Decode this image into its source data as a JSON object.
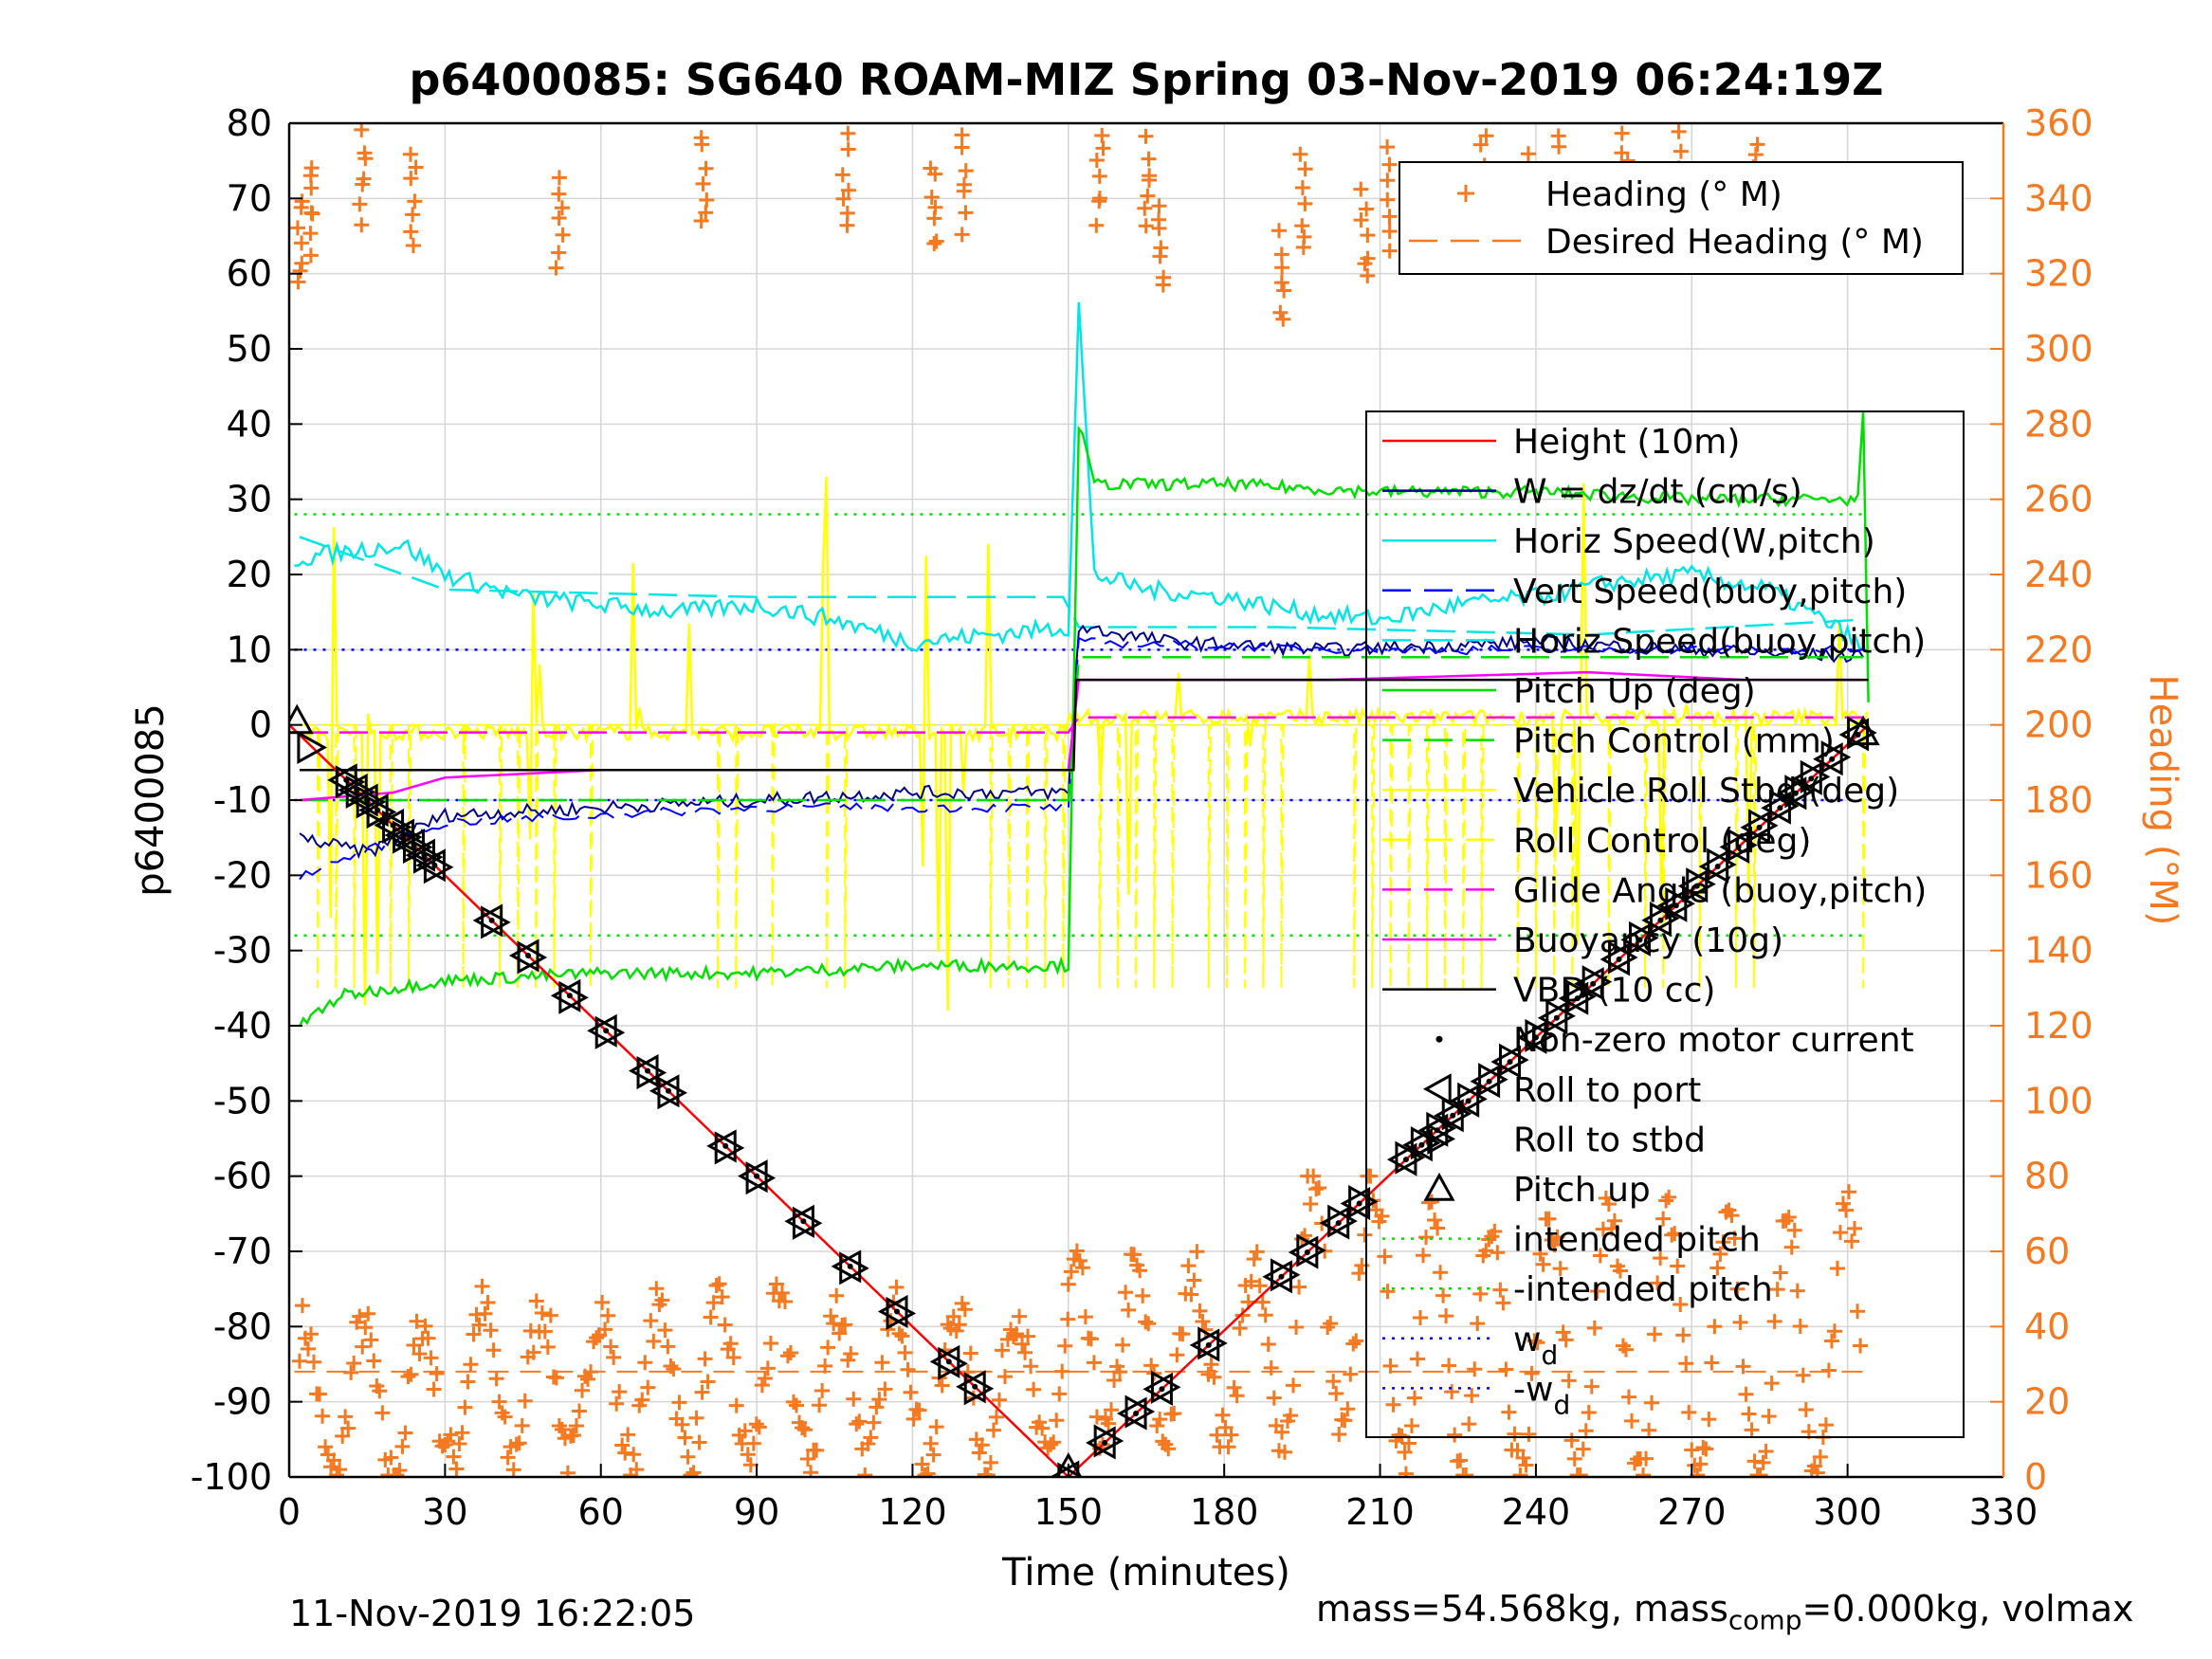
{
  "chart_data": {
    "type": "line",
    "title": "p6400085: SG640 ROAM-MIZ Spring 03-Nov-2019 06:24:19Z",
    "xlabel": "Time (minutes)",
    "ylabel_left": "p6400085",
    "ylabel_right": "Heading (°M)",
    "xlim": [
      0,
      330
    ],
    "ylim_left": [
      -100,
      80
    ],
    "ylim_right": [
      0,
      360
    ],
    "xticks": [
      "0",
      "30",
      "60",
      "90",
      "120",
      "150",
      "180",
      "210",
      "240",
      "270",
      "300",
      "330"
    ],
    "yticks_left": [
      "80",
      "70",
      "60",
      "50",
      "40",
      "30",
      "20",
      "10",
      "0",
      "-10",
      "-20",
      "-30",
      "-40",
      "-50",
      "-60",
      "-70",
      "-80",
      "-90",
      "-100"
    ],
    "yticks_right": [
      "360",
      "340",
      "320",
      "300",
      "280",
      "260",
      "240",
      "220",
      "200",
      "180",
      "160",
      "140",
      "120",
      "100",
      "80",
      "60",
      "40",
      "20",
      "0"
    ],
    "grid": true,
    "legend_top": [
      {
        "label": "Heading (° M)",
        "color": "#f47920",
        "style": "plus"
      },
      {
        "label": "Desired Heading (° M)",
        "color": "#f47920",
        "style": "dashed"
      }
    ],
    "legend_main": [
      {
        "label": "Height (10m)",
        "color": "#ff0000",
        "style": "solid"
      },
      {
        "label": "W = dz/dt (cm/s)",
        "color": "#00008b",
        "style": "solid"
      },
      {
        "label": "Horiz Speed(W,pitch)",
        "color": "#00e5e5",
        "style": "solid"
      },
      {
        "label": "Vert Speed(buoy,pitch)",
        "color": "#0000ff",
        "style": "dashed"
      },
      {
        "label": "Horiz Speed(buoy,pitch)",
        "color": "#00e5e5",
        "style": "dashed"
      },
      {
        "label": "Pitch Up (deg)",
        "color": "#00e000",
        "style": "solid"
      },
      {
        "label": "Pitch Control (mm)",
        "color": "#00e000",
        "style": "dashed"
      },
      {
        "label": "Vehicle Roll Stbd (deg)",
        "color": "#ffff00",
        "style": "solid"
      },
      {
        "label": "Roll Control (deg)",
        "color": "#ffff00",
        "style": "dashed"
      },
      {
        "label": "Glide Angle (buoy,pitch)",
        "color": "#ff00ff",
        "style": "dashed"
      },
      {
        "label": "Buoyancy (10g)",
        "color": "#ff00ff",
        "style": "solid"
      },
      {
        "label": "VBD (10 cc)",
        "color": "#000000",
        "style": "solid"
      },
      {
        "label": "Non-zero motor current",
        "color": "#000000",
        "style": "dot"
      },
      {
        "label": "Roll to port",
        "color": "#000000",
        "style": "tri-left"
      },
      {
        "label": "Roll to stbd",
        "color": "#000000",
        "style": "tri-right"
      },
      {
        "label": "Pitch up",
        "color": "#000000",
        "style": "tri-up"
      },
      {
        "label": "intended pitch",
        "color": "#00e000",
        "style": "dotted"
      },
      {
        "label": "-intended pitch",
        "color": "#00e000",
        "style": "dotted"
      },
      {
        "label": "w",
        "sub": "d",
        "color": "#0000ff",
        "style": "dotted"
      },
      {
        "label": "-w",
        "sub": "d",
        "color": "#0000ff",
        "style": "dotted"
      }
    ],
    "reference_lines": {
      "intended_pitch": 28,
      "neg_intended_pitch": -28,
      "w_d": 10,
      "neg_w_d": -10,
      "desired_heading_deg": 28
    },
    "height_path": [
      [
        0,
        0
      ],
      [
        150,
        -100
      ],
      [
        304,
        0
      ]
    ],
    "dive_markers_x": [
      11,
      13,
      15,
      17,
      20,
      22,
      24,
      26,
      28,
      39,
      46,
      54,
      61,
      69,
      73,
      84,
      90,
      99,
      108,
      117,
      127,
      132,
      150
    ],
    "climb_markers_x": [
      157,
      163,
      168,
      177,
      191,
      196,
      202,
      206,
      215,
      218,
      221,
      224,
      227,
      231,
      235,
      240,
      244,
      248,
      251,
      256,
      260,
      264,
      267,
      271,
      275,
      279,
      283,
      287,
      290,
      293,
      297,
      302
    ],
    "vbd_levels": [
      [
        2,
        -6
      ],
      [
        151,
        -6
      ],
      [
        151.5,
        6
      ],
      [
        304,
        6
      ]
    ],
    "horiz_speed_w_pitch": [
      [
        1,
        22
      ],
      [
        10,
        23
      ],
      [
        22,
        24
      ],
      [
        30,
        20
      ],
      [
        45,
        17
      ],
      [
        60,
        16
      ],
      [
        75,
        15
      ],
      [
        90,
        16
      ],
      [
        105,
        14
      ],
      [
        120,
        11
      ],
      [
        135,
        12
      ],
      [
        150,
        13
      ],
      [
        152,
        56
      ],
      [
        155,
        20
      ],
      [
        165,
        18
      ],
      [
        180,
        17
      ],
      [
        195,
        15
      ],
      [
        210,
        14
      ],
      [
        225,
        16
      ],
      [
        240,
        17
      ],
      [
        255,
        19
      ],
      [
        270,
        20
      ],
      [
        285,
        18
      ],
      [
        300,
        12
      ],
      [
        303,
        10
      ]
    ],
    "horiz_speed_buoy_pitch": [
      [
        2,
        25
      ],
      [
        30,
        18
      ],
      [
        90,
        17
      ],
      [
        149,
        17
      ],
      [
        152,
        13
      ],
      [
        190,
        13
      ],
      [
        250,
        12
      ],
      [
        303,
        14
      ]
    ],
    "w_dzdt": [
      [
        2,
        -15
      ],
      [
        15,
        -17
      ],
      [
        30,
        -12
      ],
      [
        60,
        -11
      ],
      [
        90,
        -10
      ],
      [
        120,
        -9
      ],
      [
        150,
        -9
      ],
      [
        152,
        13
      ],
      [
        170,
        11
      ],
      [
        200,
        10
      ],
      [
        240,
        11
      ],
      [
        270,
        10
      ],
      [
        303,
        9
      ]
    ],
    "vert_speed_buoy_pitch": [
      [
        2,
        -20
      ],
      [
        30,
        -13
      ],
      [
        90,
        -11
      ],
      [
        150,
        -11
      ],
      [
        152,
        11
      ],
      [
        210,
        10
      ],
      [
        303,
        10
      ]
    ],
    "pitch_up": [
      [
        2,
        -40
      ],
      [
        10,
        -36
      ],
      [
        30,
        -34
      ],
      [
        60,
        -33
      ],
      [
        90,
        -33
      ],
      [
        120,
        -32
      ],
      [
        150,
        -32
      ],
      [
        152,
        40
      ],
      [
        155,
        32
      ],
      [
        180,
        32
      ],
      [
        210,
        31
      ],
      [
        240,
        31
      ],
      [
        270,
        30
      ],
      [
        302,
        30
      ],
      [
        303,
        41
      ],
      [
        304,
        3
      ]
    ],
    "pitch_control": [
      [
        2,
        -10
      ],
      [
        150,
        -10
      ],
      [
        152,
        9
      ],
      [
        303,
        9
      ]
    ],
    "buoyancy": [
      [
        2,
        -10
      ],
      [
        20,
        -9
      ],
      [
        30,
        -7
      ],
      [
        60,
        -6
      ],
      [
        120,
        -6
      ],
      [
        150,
        -6
      ],
      [
        152,
        6
      ],
      [
        200,
        6
      ],
      [
        250,
        7
      ],
      [
        280,
        6
      ],
      [
        303,
        6
      ]
    ],
    "glide_angle": [
      [
        2,
        -1
      ],
      [
        150,
        -1
      ],
      [
        152,
        1
      ],
      [
        303,
        1
      ]
    ],
    "heading_bands": [
      {
        "x0": 2,
        "x1": 30,
        "lo": 0,
        "hi": 40
      },
      {
        "x0": 30,
        "x1": 150,
        "lo": 5,
        "hi": 45
      },
      {
        "x0": 150,
        "x1": 190,
        "lo": 10,
        "hi": 55
      },
      {
        "x0": 190,
        "x1": 215,
        "lo": 10,
        "hi": 80
      },
      {
        "x0": 215,
        "x1": 303,
        "lo": 0,
        "hi": 70
      }
    ],
    "heading_wrap_clusters": [
      [
        2,
        340
      ],
      [
        4,
        350
      ],
      [
        14,
        358
      ],
      [
        24,
        352
      ],
      [
        52,
        345
      ],
      [
        80,
        357
      ],
      [
        107,
        356
      ],
      [
        124,
        350
      ],
      [
        130,
        356
      ],
      [
        156,
        358
      ],
      [
        165,
        356
      ],
      [
        168,
        340
      ],
      [
        191,
        330
      ],
      [
        195,
        350
      ],
      [
        207,
        342
      ],
      [
        212,
        352
      ],
      [
        230,
        357
      ],
      [
        238,
        350
      ],
      [
        245,
        356
      ],
      [
        257,
        358
      ],
      [
        268,
        357
      ],
      [
        282,
        355
      ]
    ]
  },
  "footer": {
    "timestamp": "11-Nov-2019 16:22:05",
    "mass_prefix": "mass=54.568kg, mass",
    "mass_sub": "comp",
    "mass_suffix": "=0.000kg, volmax"
  }
}
